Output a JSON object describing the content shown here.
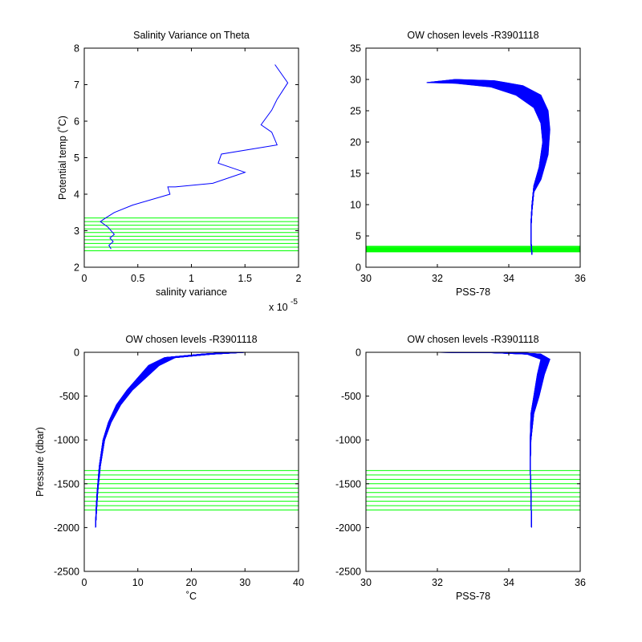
{
  "figure": {
    "background": "#ffffff",
    "axis_color": "#000000",
    "line_color": "#0000ff",
    "level_color": "#00ff00"
  },
  "chart_data": [
    {
      "type": "line",
      "title": "Salinity Variance on Theta",
      "xlabel": "salinity variance",
      "ylabel": "Potential temp (˚C)",
      "xlim": [
        0,
        2.0
      ],
      "ylim": [
        2,
        8
      ],
      "xticks": [
        0,
        0.5,
        1,
        1.5,
        2
      ],
      "xtick_labels": [
        "0",
        "0.5",
        "1",
        "1.5",
        "2"
      ],
      "yticks": [
        2,
        3,
        4,
        5,
        6,
        7,
        8
      ],
      "ytick_labels": [
        "2",
        "3",
        "4",
        "5",
        "6",
        "7",
        "8"
      ],
      "x_exponent_label": "x 10",
      "x_exponent_power": "-5",
      "grid": false,
      "series": [
        {
          "x": [
            0.25,
            0.23,
            0.27,
            0.24,
            0.28,
            0.22,
            0.15,
            0.2,
            0.28,
            0.45,
            0.8,
            0.78,
            0.85,
            1.2,
            1.5,
            1.25,
            1.28,
            1.8,
            1.75,
            1.65,
            1.75,
            1.8,
            1.9,
            1.78
          ],
          "y": [
            2.5,
            2.6,
            2.7,
            2.8,
            2.9,
            3.1,
            3.25,
            3.35,
            3.5,
            3.7,
            4.0,
            4.2,
            4.2,
            4.3,
            4.6,
            4.85,
            5.1,
            5.35,
            5.7,
            5.9,
            6.3,
            6.6,
            7.05,
            7.55
          ]
        }
      ],
      "levels": [
        2.45,
        2.55,
        2.65,
        2.75,
        2.85,
        2.95,
        3.05,
        3.15,
        3.25,
        3.35
      ]
    },
    {
      "type": "line",
      "title": "OW chosen levels -R3901118",
      "xlabel": "PSS-78",
      "ylabel": "",
      "xlim": [
        30,
        36
      ],
      "ylim": [
        0,
        35
      ],
      "xticks": [
        30,
        32,
        34,
        36
      ],
      "xtick_labels": [
        "30",
        "32",
        "34",
        "36"
      ],
      "yticks": [
        0,
        5,
        10,
        15,
        20,
        25,
        30,
        35
      ],
      "ytick_labels": [
        "0",
        "5",
        "10",
        "15",
        "20",
        "25",
        "30",
        "35"
      ],
      "grid": false,
      "profile_count": 60,
      "series": [
        {
          "name": "",
          "x": [
            31.7,
            32.5,
            33.5,
            34.2,
            34.7,
            34.9,
            34.95,
            34.85,
            34.7,
            34.65,
            34.62,
            34.62,
            34.65
          ],
          "y": [
            29.5,
            29.4,
            28.8,
            27.5,
            25.5,
            23.0,
            20.0,
            16.0,
            13.0,
            10.0,
            7.0,
            4.5,
            2.0
          ]
        },
        {
          "name": "",
          "x": [
            32.5,
            33.6,
            34.4,
            34.9,
            35.1,
            35.15,
            35.1,
            34.9,
            34.7,
            34.65,
            34.62,
            34.62,
            34.65
          ],
          "y": [
            30.0,
            29.8,
            29.0,
            27.5,
            25.0,
            22.0,
            18.0,
            14.0,
            12.0,
            9.0,
            6.0,
            4.0,
            2.0
          ]
        }
      ],
      "levels": [
        2.45,
        2.55,
        2.65,
        2.75,
        2.85,
        2.95,
        3.05,
        3.15,
        3.25,
        3.35
      ]
    },
    {
      "type": "line",
      "title": "OW chosen levels -R3901118",
      "xlabel": "˚C",
      "ylabel": "Pressure (dbar)",
      "xlim": [
        0,
        40
      ],
      "ylim": [
        -2500,
        0
      ],
      "xticks": [
        0,
        10,
        20,
        30,
        40
      ],
      "xtick_labels": [
        "0",
        "10",
        "20",
        "30",
        "40"
      ],
      "yticks": [
        0,
        -500,
        -1000,
        -1500,
        -2000,
        -2500
      ],
      "ytick_labels": [
        "0",
        "-500",
        "-1000",
        "-1500",
        "-2000",
        "-2500"
      ],
      "grid": false,
      "profile_count": 60,
      "series": [
        {
          "name": "",
          "x": [
            28.0,
            22.0,
            15.0,
            12.0,
            8.0,
            6.0,
            4.5,
            3.5,
            2.8,
            2.4,
            2.2,
            2.1
          ],
          "y": [
            0,
            -20,
            -60,
            -150,
            -430,
            -600,
            -800,
            -1000,
            -1300,
            -1600,
            -1800,
            -2000
          ]
        },
        {
          "name": "",
          "x": [
            30.0,
            24.0,
            17.0,
            14.0,
            9.0,
            6.8,
            5.0,
            3.8,
            3.0,
            2.5,
            2.3,
            2.1
          ],
          "y": [
            0,
            -20,
            -60,
            -150,
            -430,
            -600,
            -800,
            -1000,
            -1300,
            -1600,
            -1800,
            -2000
          ]
        }
      ],
      "levels": [
        -1350,
        -1400,
        -1450,
        -1500,
        -1550,
        -1600,
        -1650,
        -1700,
        -1750,
        -1800
      ]
    },
    {
      "type": "line",
      "title": "OW chosen levels -R3901118",
      "xlabel": "PSS-78",
      "ylabel": "",
      "xlim": [
        30,
        36
      ],
      "ylim": [
        -2500,
        0
      ],
      "xticks": [
        30,
        32,
        34,
        36
      ],
      "xtick_labels": [
        "30",
        "32",
        "34",
        "36"
      ],
      "yticks": [
        0,
        -500,
        -1000,
        -1500,
        -2000,
        -2500
      ],
      "ytick_labels": [
        "0",
        "-500",
        "-1000",
        "-1500",
        "-2000",
        "-2500"
      ],
      "grid": false,
      "profile_count": 60,
      "series": [
        {
          "name": "",
          "x": [
            32.0,
            33.5,
            34.5,
            34.9,
            34.8,
            34.7,
            34.62,
            34.6,
            34.6,
            34.62,
            34.63,
            34.64
          ],
          "y": [
            0,
            -5,
            -20,
            -80,
            -250,
            -500,
            -700,
            -1000,
            -1300,
            -1600,
            -1800,
            -2000
          ]
        },
        {
          "name": "",
          "x": [
            33.0,
            34.2,
            34.9,
            35.15,
            35.0,
            34.85,
            34.7,
            34.62,
            34.6,
            34.62,
            34.63,
            34.64
          ],
          "y": [
            0,
            -5,
            -20,
            -80,
            -250,
            -500,
            -700,
            -1000,
            -1300,
            -1600,
            -1800,
            -2000
          ]
        }
      ],
      "levels": [
        -1350,
        -1400,
        -1450,
        -1500,
        -1550,
        -1600,
        -1650,
        -1700,
        -1750,
        -1800
      ]
    }
  ]
}
